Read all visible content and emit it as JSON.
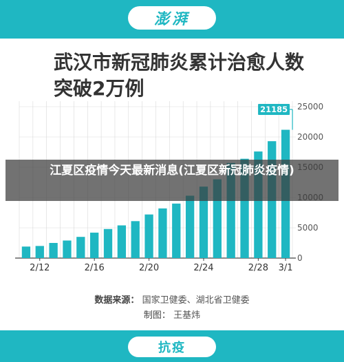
{
  "header": {
    "logo_text": "澎湃"
  },
  "title": "武汉市新冠肺炎累计治愈人数突破2万例",
  "overlay_text": "江夏区疫情今天最新消息(江夏区新冠肺炎疫情)",
  "footer": {
    "source_label": "数据来源：",
    "source_value": "国家卫健委、湖北省卫健委",
    "author_label": "制图：",
    "author_value": "王基炜",
    "badge_text": "抗疫"
  },
  "colors": {
    "brand": "#1fb7c2",
    "bar": "#1fb7c2",
    "grid": "#d9d9d9"
  },
  "chart_data": {
    "type": "bar",
    "title": "武汉市新冠肺炎累计治愈人数突破2万例",
    "xlabel": "",
    "ylabel": "",
    "x_tick_labels": [
      "2/12",
      "2/16",
      "2/20",
      "2/24",
      "2/28",
      "3/1"
    ],
    "categories": [
      "2/11",
      "2/12",
      "2/13",
      "2/14",
      "2/15",
      "2/16",
      "2/17",
      "2/18",
      "2/19",
      "2/20",
      "2/21",
      "2/22",
      "2/23",
      "2/24",
      "2/25",
      "2/26",
      "2/27",
      "2/28",
      "2/29",
      "3/1"
    ],
    "values": [
      1900,
      2000,
      2500,
      2900,
      3500,
      4200,
      4800,
      5400,
      6100,
      7200,
      8200,
      9000,
      10300,
      11800,
      13000,
      15700,
      16400,
      17600,
      19300,
      21185
    ],
    "annotation": {
      "category": "3/1",
      "value": 21185,
      "label": "21185"
    },
    "y_ticks": [
      0,
      5000,
      10000,
      15000,
      20000,
      25000
    ],
    "y_tick_labels": [
      "0",
      "5000",
      "10000",
      "15000",
      "20000",
      "25000"
    ],
    "ylim": [
      0,
      25000
    ],
    "grid": true,
    "y_axis_position": "right"
  }
}
